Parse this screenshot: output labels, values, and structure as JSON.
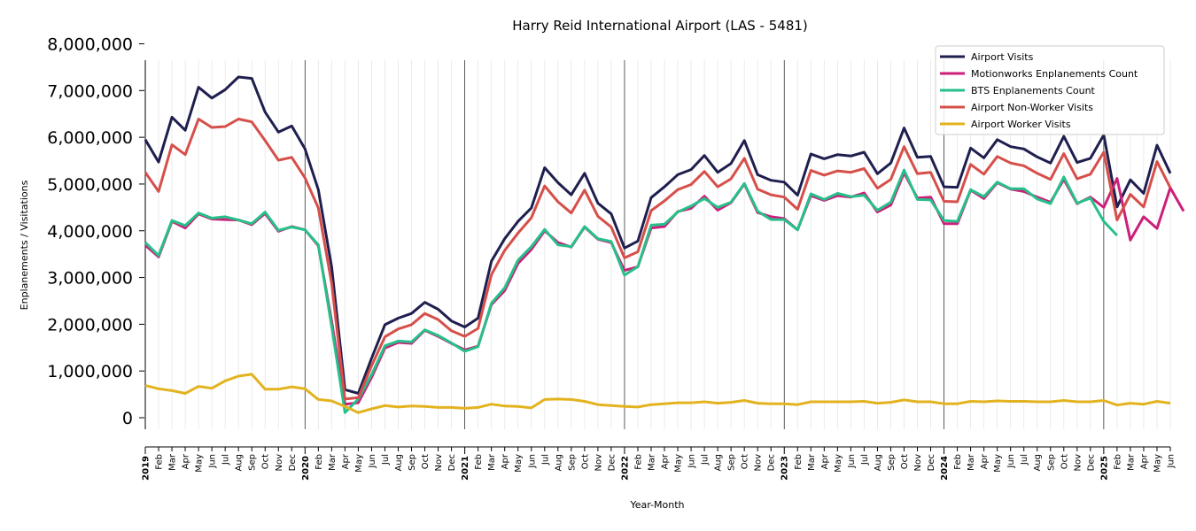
{
  "chart_data": {
    "type": "line",
    "title": "Harry Reid International Airport (LAS - 5481)",
    "xlabel": "Year-Month",
    "ylabel": "Enplanements / Visitations",
    "ylim": [
      -250000,
      8000000
    ],
    "yticks": [
      0,
      1000000,
      2000000,
      3000000,
      4000000,
      5000000,
      6000000,
      7000000,
      8000000
    ],
    "ytick_labels": [
      "0",
      "1,000,000",
      "2,000,000",
      "3,000,000",
      "4,000,000",
      "5,000,000",
      "6,000,000",
      "7,000,000",
      "8,000,000"
    ],
    "years": [
      "2019",
      "2020",
      "2021",
      "2022",
      "2023",
      "2024",
      "2025"
    ],
    "months": [
      "Jan",
      "Feb",
      "Mar",
      "Apr",
      "May",
      "Jun",
      "Jul",
      "Aug",
      "Sep",
      "Oct",
      "Nov",
      "Dec"
    ],
    "x_start": "2019-01",
    "x_end": "2025-06",
    "legend_position": "top-right",
    "grid": "vertical monthly lines",
    "series": [
      {
        "name": "Airport Visits",
        "color": "#1f1f4f",
        "values": [
          5950000,
          5470000,
          6430000,
          6150000,
          7070000,
          6840000,
          7020000,
          7290000,
          7260000,
          6540000,
          6110000,
          6240000,
          5750000,
          4880000,
          3220000,
          600000,
          520000,
          1270000,
          1990000,
          2130000,
          2230000,
          2470000,
          2320000,
          2070000,
          1940000,
          2130000,
          3350000,
          3830000,
          4200000,
          4490000,
          5350000,
          5030000,
          4770000,
          5230000,
          4590000,
          4360000,
          3630000,
          3780000,
          4710000,
          4940000,
          5200000,
          5310000,
          5610000,
          5250000,
          5440000,
          5930000,
          5200000,
          5080000,
          5040000,
          4760000,
          5640000,
          5540000,
          5630000,
          5600000,
          5680000,
          5220000,
          5450000,
          6200000,
          5570000,
          5590000,
          4940000,
          4930000,
          5770000,
          5560000,
          5950000,
          5800000,
          5750000,
          5580000,
          5450000,
          6020000,
          5460000,
          5550000,
          6050000,
          4510000,
          5090000,
          4800000,
          5830000,
          5230000
        ]
      },
      {
        "name": "Motionworks Enplanements Count",
        "color": "#cc1f7a",
        "values": [
          3690000,
          3440000,
          4200000,
          4060000,
          4360000,
          4250000,
          4240000,
          4230000,
          4130000,
          4370000,
          3990000,
          4090000,
          4020000,
          3680000,
          2060000,
          290000,
          320000,
          860000,
          1490000,
          1610000,
          1590000,
          1870000,
          1740000,
          1590000,
          1450000,
          1530000,
          2420000,
          2720000,
          3300000,
          3600000,
          4000000,
          3750000,
          3650000,
          4080000,
          3820000,
          3750000,
          3150000,
          3230000,
          4060000,
          4090000,
          4410000,
          4480000,
          4740000,
          4440000,
          4600000,
          5000000,
          4390000,
          4300000,
          4260000,
          4020000,
          4750000,
          4650000,
          4750000,
          4720000,
          4810000,
          4400000,
          4550000,
          5240000,
          4700000,
          4720000,
          4150000,
          4150000,
          4870000,
          4690000,
          5030000,
          4890000,
          4840000,
          4720000,
          4610000,
          5100000,
          4580000,
          4720000,
          4500000,
          5120000,
          3800000,
          4300000,
          4050000,
          4920000,
          4420000
        ]
      },
      {
        "name": "BTS Enplanements Count",
        "color": "#26c08a",
        "values": [
          3750000,
          3470000,
          4220000,
          4110000,
          4380000,
          4270000,
          4300000,
          4230000,
          4150000,
          4400000,
          4010000,
          4080000,
          4020000,
          3700000,
          1950000,
          110000,
          400000,
          920000,
          1540000,
          1640000,
          1620000,
          1880000,
          1760000,
          1600000,
          1420000,
          1520000,
          2450000,
          2780000,
          3370000,
          3660000,
          4030000,
          3700000,
          3660000,
          4090000,
          3830000,
          3770000,
          3050000,
          3230000,
          4120000,
          4140000,
          4400000,
          4530000,
          4690000,
          4500000,
          4610000,
          5010000,
          4420000,
          4240000,
          4240000,
          4020000,
          4790000,
          4670000,
          4800000,
          4730000,
          4760000,
          4440000,
          4610000,
          5300000,
          4670000,
          4660000,
          4220000,
          4200000,
          4880000,
          4730000,
          5040000,
          4900000,
          4900000,
          4680000,
          4580000,
          5150000,
          4590000,
          4700000,
          4200000,
          3900000
        ]
      },
      {
        "name": "Airport Non-Worker Visits",
        "color": "#d64f4a",
        "values": [
          5250000,
          4840000,
          5840000,
          5630000,
          6390000,
          6210000,
          6230000,
          6390000,
          6330000,
          5930000,
          5510000,
          5570000,
          5130000,
          4490000,
          2870000,
          400000,
          430000,
          1110000,
          1730000,
          1900000,
          1990000,
          2230000,
          2100000,
          1860000,
          1740000,
          1910000,
          3060000,
          3580000,
          3950000,
          4280000,
          4960000,
          4620000,
          4380000,
          4870000,
          4310000,
          4080000,
          3420000,
          3550000,
          4430000,
          4640000,
          4880000,
          4990000,
          5270000,
          4940000,
          5110000,
          5550000,
          4890000,
          4770000,
          4720000,
          4460000,
          5290000,
          5190000,
          5280000,
          5250000,
          5330000,
          4910000,
          5100000,
          5800000,
          5220000,
          5250000,
          4630000,
          4620000,
          5420000,
          5210000,
          5590000,
          5450000,
          5390000,
          5230000,
          5100000,
          5650000,
          5110000,
          5210000,
          5680000,
          4230000,
          4780000,
          4510000,
          5480000,
          4920000
        ]
      },
      {
        "name": "Airport Worker Visits",
        "color": "#e3b31f",
        "values": [
          690000,
          620000,
          580000,
          520000,
          670000,
          630000,
          790000,
          890000,
          930000,
          610000,
          610000,
          660000,
          620000,
          390000,
          360000,
          240000,
          110000,
          190000,
          260000,
          230000,
          250000,
          240000,
          220000,
          220000,
          200000,
          220000,
          290000,
          250000,
          240000,
          210000,
          390000,
          400000,
          390000,
          350000,
          280000,
          260000,
          240000,
          230000,
          280000,
          300000,
          320000,
          320000,
          340000,
          310000,
          330000,
          370000,
          310000,
          300000,
          300000,
          280000,
          340000,
          340000,
          340000,
          340000,
          350000,
          310000,
          330000,
          380000,
          340000,
          340000,
          300000,
          300000,
          350000,
          340000,
          360000,
          350000,
          350000,
          340000,
          340000,
          370000,
          340000,
          340000,
          370000,
          270000,
          310000,
          290000,
          350000,
          310000
        ]
      }
    ]
  }
}
